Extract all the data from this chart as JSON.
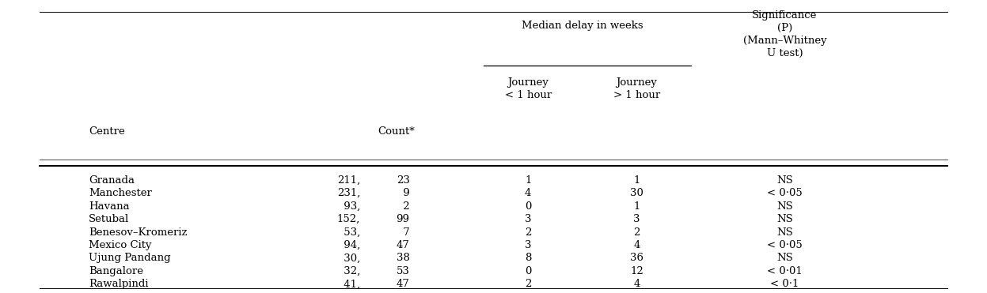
{
  "rows": [
    [
      "Granada",
      "211,",
      "23",
      "1",
      "1",
      "NS"
    ],
    [
      "Manchester",
      "231,",
      " 9",
      "4",
      "30",
      "< 0·05"
    ],
    [
      "Havana",
      " 93,",
      " 2",
      "0",
      "1",
      "NS"
    ],
    [
      "Setubal",
      "152,",
      "99",
      "3",
      "3",
      "NS"
    ],
    [
      "Benesov–Kromeriz",
      " 53,",
      " 7",
      "2",
      "2",
      "NS"
    ],
    [
      "Mexico City",
      " 94,",
      "47",
      "3",
      "4",
      "< 0·05"
    ],
    [
      "Ujung Pandang",
      " 30,",
      "38",
      "8",
      "36",
      "NS"
    ],
    [
      "Bangalore",
      " 32,",
      "53",
      "0",
      "12",
      "< 0·01"
    ],
    [
      "Rawalpindi",
      " 41,",
      "47",
      "2",
      "4",
      "< 0·1"
    ]
  ],
  "background_color": "#ffffff",
  "text_color": "#000000",
  "font_size": 9.5
}
